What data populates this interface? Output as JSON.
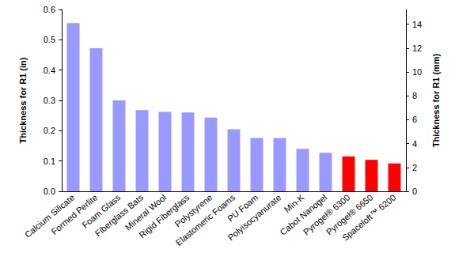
{
  "chart_data": {
    "type": "bar",
    "categories": [
      "Calcium Silicate",
      "Formed Perlite",
      "Foam Glass",
      "Fiberglass Bats",
      "Mineral Wool",
      "Rigid Fiberglass",
      "Polystyrene",
      "Elastomeric Foams",
      "PU Foam",
      "Polyisocyanurate",
      "Min-K",
      "Cabot Nanogel",
      "Pyrogel® 6300",
      "Pyrogel® 6650",
      "Spaceloft™ 6200"
    ],
    "values": [
      0.555,
      0.472,
      0.3,
      0.268,
      0.262,
      0.26,
      0.243,
      0.205,
      0.176,
      0.176,
      0.14,
      0.127,
      0.115,
      0.104,
      0.092
    ],
    "colors": [
      "#9999ff",
      "#9999ff",
      "#9999ff",
      "#9999ff",
      "#9999ff",
      "#9999ff",
      "#9999ff",
      "#9999ff",
      "#9999ff",
      "#9999ff",
      "#9999ff",
      "#9999ff",
      "#ff0000",
      "#ff0000",
      "#ff0000"
    ],
    "ylabel": "Thickness for R1 (in)",
    "ylim": [
      0,
      0.6
    ],
    "yticks": [
      {
        "value": 0,
        "label": "0.0"
      },
      0.1,
      0.2,
      0.3,
      0.4,
      0.5,
      0.6
    ],
    "y2label": "Thickness for R1 (mm)",
    "y2lim": [
      0,
      15.24
    ],
    "y2ticks": [
      0,
      2,
      4,
      6,
      8,
      10,
      12,
      14
    ],
    "grid": false
  }
}
